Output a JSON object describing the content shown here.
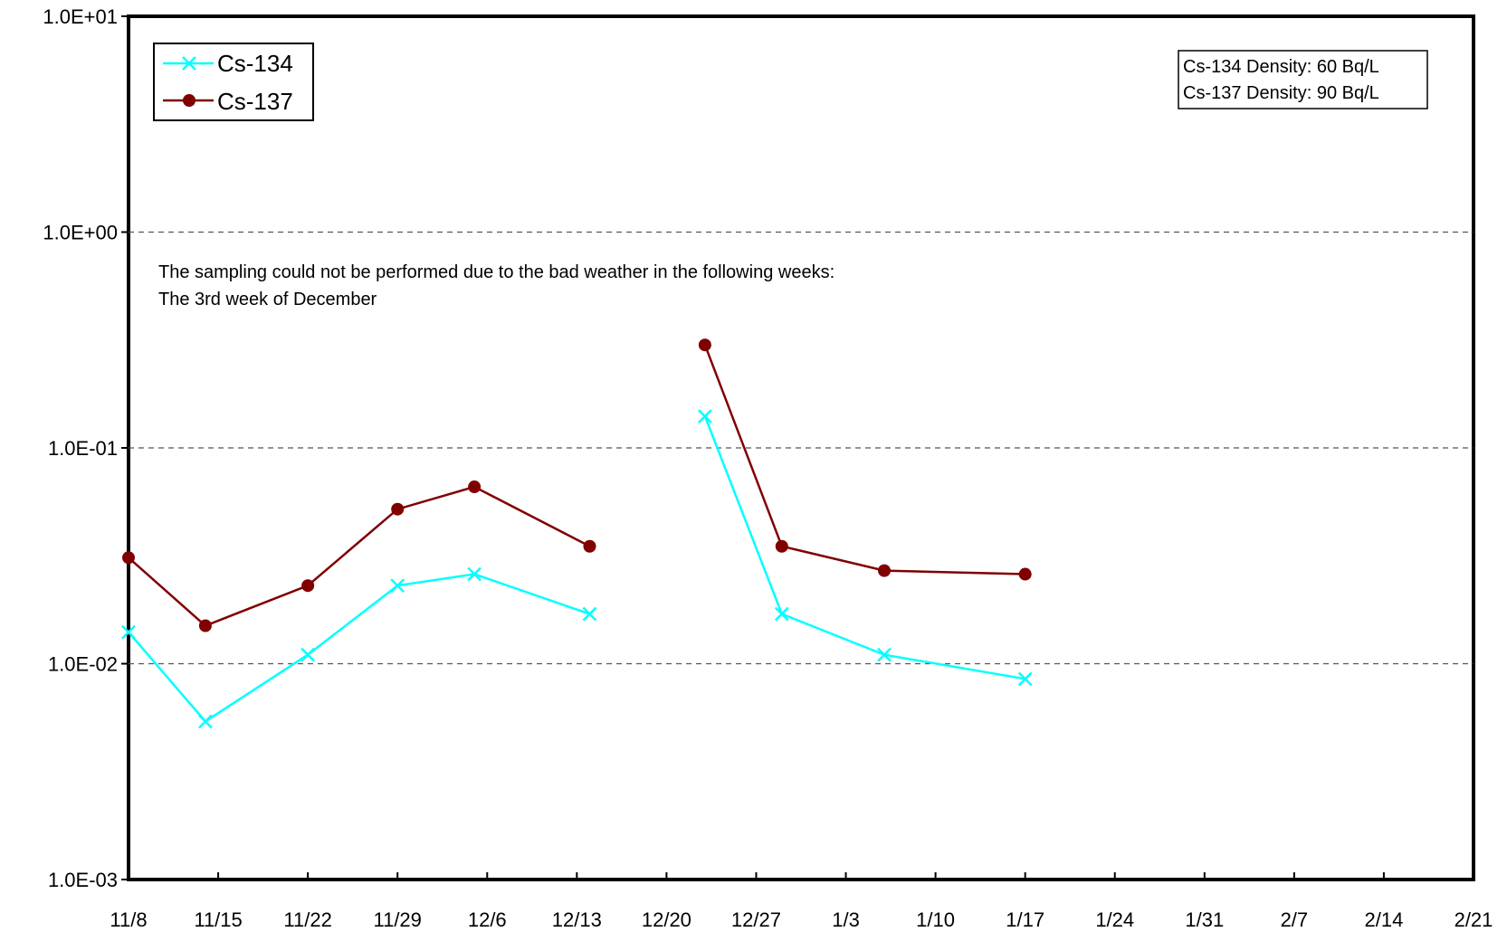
{
  "chart_data": {
    "type": "line",
    "y_scale": "log",
    "ylim": [
      0.001,
      10
    ],
    "y_ticks": [
      "1.0E-03",
      "1.0E-02",
      "1.0E-01",
      "1.0E+00",
      "1.0E+01"
    ],
    "x_ticks": [
      "11/8",
      "11/15",
      "11/22",
      "11/29",
      "12/6",
      "12/13",
      "12/20",
      "12/27",
      "1/3",
      "1/10",
      "1/17",
      "1/24",
      "1/31",
      "2/7",
      "2/14",
      "2/21"
    ],
    "grid": "horizontal dashed at 1.0E-02, 1.0E-01, 1.0E+00",
    "legend_position": "top-left",
    "series": [
      {
        "name": "Cs-134",
        "color": "#00ffff",
        "marker": "x",
        "segments": [
          [
            {
              "x": "11/8",
              "y": 0.014
            },
            {
              "x": "11/14",
              "y": 0.0054
            },
            {
              "x": "11/22",
              "y": 0.011
            },
            {
              "x": "11/29",
              "y": 0.023
            },
            {
              "x": "12/5",
              "y": 0.026
            },
            {
              "x": "12/14",
              "y": 0.017
            }
          ],
          [
            {
              "x": "12/23",
              "y": 0.14
            },
            {
              "x": "12/29",
              "y": 0.017
            },
            {
              "x": "1/6",
              "y": 0.011
            },
            {
              "x": "1/17",
              "y": 0.0085
            }
          ]
        ]
      },
      {
        "name": "Cs-137",
        "color": "#800000",
        "marker": "circle",
        "segments": [
          [
            {
              "x": "11/8",
              "y": 0.031
            },
            {
              "x": "11/14",
              "y": 0.015
            },
            {
              "x": "11/22",
              "y": 0.023
            },
            {
              "x": "11/29",
              "y": 0.052
            },
            {
              "x": "12/5",
              "y": 0.066
            },
            {
              "x": "12/14",
              "y": 0.035
            }
          ],
          [
            {
              "x": "12/23",
              "y": 0.3
            },
            {
              "x": "12/29",
              "y": 0.035
            },
            {
              "x": "1/6",
              "y": 0.027
            },
            {
              "x": "1/17",
              "y": 0.026
            }
          ]
        ]
      }
    ],
    "annotations": [
      "The sampling could not be performed due to the bad weather in  the following weeks:",
      "The 3rd week of December"
    ],
    "density_box": [
      "Cs-134 Density: 60 Bq/L",
      "Cs-137 Density: 90 Bq/L"
    ]
  }
}
